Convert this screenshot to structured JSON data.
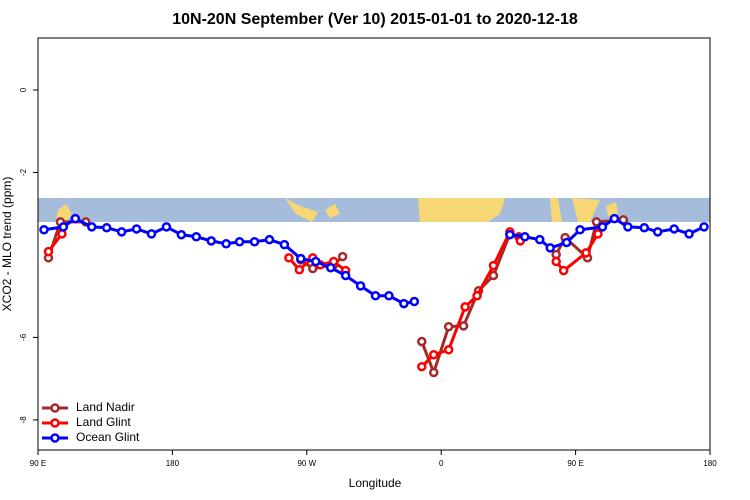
{
  "chart_data": {
    "type": "line",
    "title": "10N-20N September (Ver 10)   2015-01-01 to 2020-12-18",
    "x_label": "Longitude",
    "y_label": "XCO2 - MLO trend (ppm)",
    "xlim": [
      90,
      540
    ],
    "xticks": [
      {
        "value": 90,
        "label": "90 E"
      },
      {
        "value": 180,
        "label": "180"
      },
      {
        "value": 270,
        "label": "90 W"
      },
      {
        "value": 360,
        "label": "0"
      },
      {
        "value": 450,
        "label": "90 E"
      },
      {
        "value": 540,
        "label": "180"
      }
    ],
    "ylim": [
      -8.73,
      1.26
    ],
    "yticks": [
      -8,
      -6,
      -2,
      0
    ],
    "legend": "bottomleft",
    "series": [
      {
        "name": "Land Nadir",
        "color": "#a52a2a",
        "x": [
          97,
          105,
          122,
          null,
          266,
          274,
          288,
          294,
          null,
          347,
          355,
          365,
          375,
          385,
          395,
          406,
          412,
          null,
          437,
          443,
          458,
          464,
          482
        ],
        "values": [
          -4.07,
          -3.2,
          -3.2,
          null,
          -4.12,
          -4.33,
          -4.24,
          -4.04,
          null,
          -6.1,
          -6.85,
          -5.74,
          -5.72,
          -4.87,
          -4.5,
          -3.49,
          -3.56,
          null,
          -3.99,
          -3.58,
          -4.07,
          -3.2,
          -3.15
        ]
      },
      {
        "name": "Land Glint",
        "color": "#ff0000",
        "x": [
          97,
          106,
          null,
          258,
          265,
          274,
          279,
          288,
          296,
          null,
          347,
          355,
          365,
          376,
          384,
          395,
          406,
          413,
          null,
          437,
          442,
          457,
          465
        ],
        "values": [
          -3.92,
          -3.49,
          null,
          -4.07,
          -4.36,
          -4.07,
          -4.24,
          -4.16,
          -4.38,
          null,
          -6.71,
          -6.42,
          -6.3,
          -5.26,
          -4.99,
          -4.26,
          -3.44,
          -3.66,
          null,
          -4.16,
          -4.38,
          -3.95,
          -3.49
        ]
      },
      {
        "name": "Ocean Glint",
        "color": "#0000ff",
        "x": [
          94,
          107,
          115,
          126,
          136,
          146,
          156,
          166,
          176,
          186,
          196,
          206,
          216,
          225,
          235,
          245,
          255,
          266,
          276,
          286,
          296,
          306,
          316,
          325,
          335,
          342,
          null,
          406,
          416,
          426,
          433,
          444,
          453,
          468,
          476,
          485,
          496,
          505,
          516,
          526,
          536
        ],
        "values": [
          -3.39,
          -3.32,
          -3.12,
          -3.32,
          -3.34,
          -3.44,
          -3.37,
          -3.49,
          -3.32,
          -3.51,
          -3.56,
          -3.66,
          -3.73,
          -3.68,
          -3.68,
          -3.63,
          -3.75,
          -4.09,
          -4.16,
          -4.31,
          -4.5,
          -4.75,
          -4.99,
          -4.99,
          -5.18,
          -5.13,
          null,
          -3.51,
          -3.56,
          -3.63,
          -3.83,
          -3.7,
          -3.39,
          -3.32,
          -3.12,
          -3.32,
          -3.34,
          -3.44,
          -3.37,
          -3.49,
          -3.32
        ]
      }
    ]
  }
}
